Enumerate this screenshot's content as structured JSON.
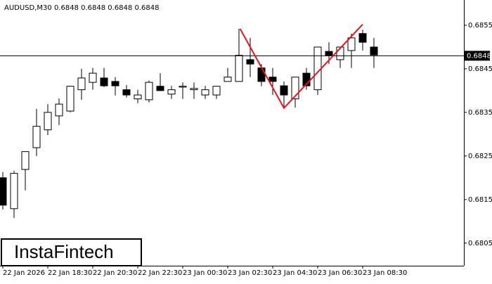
{
  "chart_data": {
    "type": "candlestick",
    "title": "AUDUSD,M30  0.6848 0.6848 0.6848 0.6848",
    "logo": "InstaFintech",
    "categories": [
      "22 Jan 2026",
      null,
      null,
      null,
      "22 Jan 18:30",
      null,
      null,
      null,
      "22 Jan 20:30",
      null,
      null,
      null,
      "22 Jan 22:30",
      null,
      null,
      null,
      "23 Jan 00:30",
      null,
      null,
      null,
      "23 Jan 02:30",
      null,
      null,
      null,
      "23 Jan 04:30",
      null,
      null,
      null,
      "23 Jan 06:30",
      null,
      null,
      null,
      "23 Jan 08:30",
      null
    ],
    "open": [
      0.682,
      0.68129,
      0.68219,
      0.68269,
      0.6831,
      0.68342,
      0.68353,
      0.68402,
      0.68419,
      0.68429,
      0.68421,
      0.68402,
      0.68381,
      0.68379,
      0.6841,
      0.68392,
      0.68408,
      0.68402,
      0.6839,
      0.6839,
      0.68421,
      0.68421,
      0.68471,
      0.68452,
      0.68431,
      0.68411,
      0.68381,
      0.6844,
      0.68402,
      0.6849,
      0.68471,
      0.68492,
      0.68531,
      0.685
    ],
    "high": [
      0.68213,
      0.68216,
      0.6826,
      0.68358,
      0.68369,
      0.68382,
      0.68411,
      0.6845,
      0.68452,
      0.68452,
      0.68431,
      0.68413,
      0.68402,
      0.68423,
      0.6844,
      0.68411,
      0.68419,
      0.68419,
      0.68411,
      0.68411,
      0.68452,
      0.68542,
      0.68521,
      0.68461,
      0.68452,
      0.68421,
      0.68431,
      0.68452,
      0.685,
      0.68511,
      0.685,
      0.68531,
      0.6854,
      0.68521
    ],
    "low": [
      0.68127,
      0.68108,
      0.68171,
      0.6825,
      0.68298,
      0.68321,
      0.6835,
      0.68379,
      0.68402,
      0.68408,
      0.68389,
      0.68384,
      0.68371,
      0.68373,
      0.684,
      0.68381,
      0.68381,
      0.68381,
      0.68381,
      0.68381,
      0.68421,
      0.68421,
      0.68431,
      0.6841,
      0.6839,
      0.68361,
      0.68361,
      0.68402,
      0.6839,
      0.68461,
      0.68452,
      0.68452,
      0.68492,
      0.68452
    ],
    "close": [
      0.68137,
      0.6821,
      0.6826,
      0.68318,
      0.6835,
      0.68369,
      0.6841,
      0.68429,
      0.6844,
      0.68411,
      0.68411,
      0.6839,
      0.6839,
      0.68419,
      0.684,
      0.68402,
      0.6841,
      0.68405,
      0.68402,
      0.6841,
      0.68431,
      0.68481,
      0.68461,
      0.68421,
      0.68421,
      0.6839,
      0.68431,
      0.68411,
      0.685,
      0.68481,
      0.685,
      0.68521,
      0.68511,
      0.68482
    ],
    "up_color": "#ffffff",
    "down_color": "#000000",
    "ylim": [
      0.67998,
      0.68608
    ],
    "yticks": [
      0.6805,
      0.6815,
      0.6825,
      0.6835,
      0.6845,
      0.6855
    ],
    "price_line": 0.6848,
    "pattern": {
      "color": "#e8141c",
      "x": [
        21.1,
        25,
        32
      ],
      "values": [
        0.68542,
        0.6836,
        0.68552
      ]
    }
  }
}
